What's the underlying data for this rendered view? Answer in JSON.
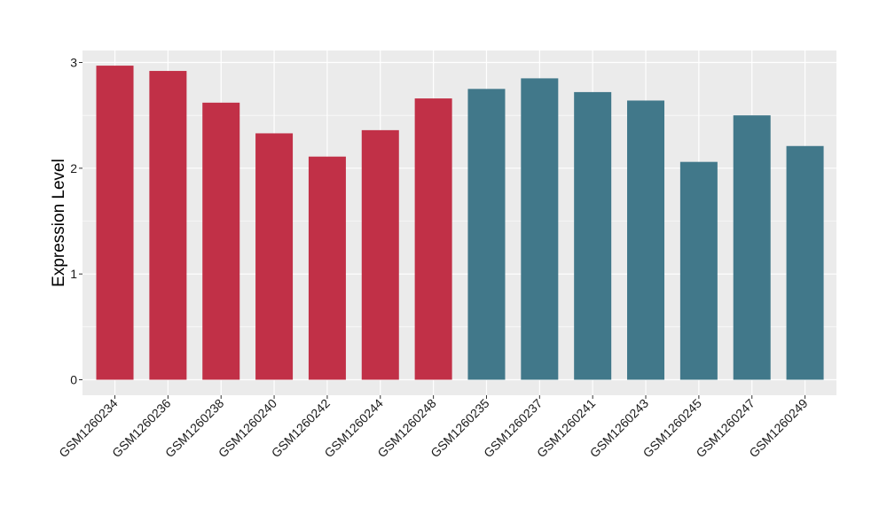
{
  "chart_data": {
    "type": "bar",
    "title": "",
    "xlabel": "",
    "ylabel": "Expression Level",
    "ylim": [
      0,
      3.1
    ],
    "yticks": [
      0,
      1,
      2,
      3
    ],
    "grid": true,
    "legend": "none",
    "background_color": "#ebebeb",
    "gridline_color": "#ffffff",
    "series": [
      {
        "color": "#c13047",
        "categories": [
          "GSM1260234",
          "GSM1260236",
          "GSM1260238",
          "GSM1260240",
          "GSM1260242",
          "GSM1260244",
          "GSM1260248"
        ],
        "values": [
          2.97,
          2.92,
          2.62,
          2.33,
          2.11,
          2.36,
          2.66
        ]
      },
      {
        "color": "#41788a",
        "categories": [
          "GSM1260235",
          "GSM1260237",
          "GSM1260241",
          "GSM1260243",
          "GSM1260245",
          "GSM1260247",
          "GSM1260249"
        ],
        "values": [
          2.75,
          2.85,
          2.72,
          2.64,
          2.06,
          2.5,
          2.21
        ]
      }
    ]
  }
}
